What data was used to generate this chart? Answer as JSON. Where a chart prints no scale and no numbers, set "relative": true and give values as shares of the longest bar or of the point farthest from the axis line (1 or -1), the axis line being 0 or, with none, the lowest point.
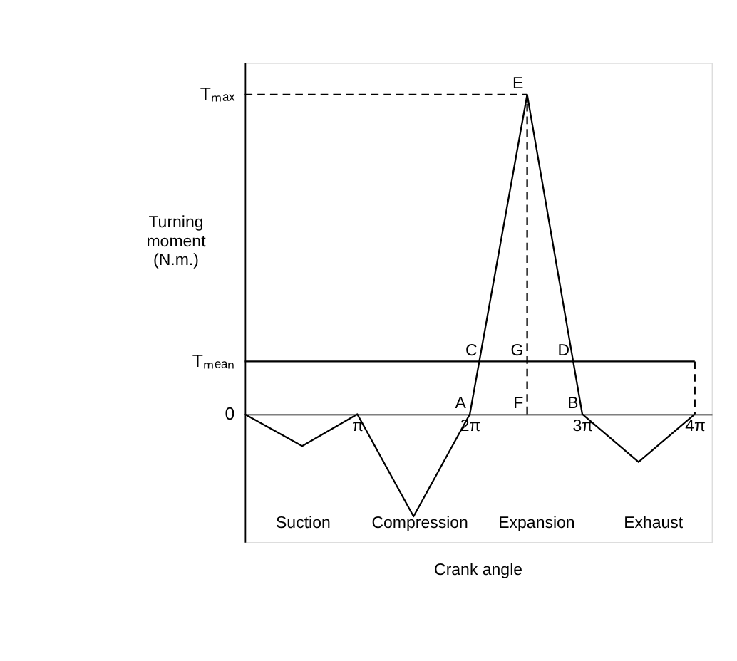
{
  "chart_data": {
    "type": "line",
    "relative": true,
    "ylabel": "Turning moment (N.m.)",
    "xlim": [
      0,
      13.04
    ],
    "xticks": [
      {
        "value": 3.1416,
        "label": "π"
      },
      {
        "value": 6.2832,
        "label": "2π"
      },
      {
        "value": 9.4248,
        "label": "3π"
      },
      {
        "value": 12.566,
        "label": "4π"
      }
    ],
    "grid": false,
    "marker": "none",
    "series": [
      {
        "color": "#000000",
        "line_style": "solid",
        "x": [
          0,
          1.602,
          3.1416,
          4.712,
          6.2832,
          7.885,
          9.4248,
          10.996,
          12.566
        ],
        "values": [
          0,
          -0.1,
          0,
          -0.32,
          0,
          1,
          0,
          -0.15,
          0
        ]
      },
      {
        "color": "#000000",
        "line_style": "solid",
        "x": [
          0,
          12.566
        ],
        "values": [
          0.165,
          0.165
        ]
      },
      {
        "color": "#000000",
        "line_style": "dashed",
        "x": [
          12.566,
          12.566
        ],
        "values": [
          0.165,
          0
        ]
      },
      {
        "color": "#000000",
        "line_style": "dashed",
        "x": [
          0,
          7.885
        ],
        "values": [
          1,
          1
        ]
      },
      {
        "color": "#000000",
        "line_style": "dashed",
        "x": [
          7.885,
          7.885
        ],
        "values": [
          0,
          1
        ]
      }
    ],
    "annotations": [
      {
        "text": "Tₘₐₓ",
        "x": 0,
        "y": 1
      },
      {
        "text": "Tₘₑₐₙ",
        "x": 0,
        "y": 0.165
      },
      {
        "text": "0",
        "x": 0,
        "y": 0
      },
      {
        "text": "E",
        "x": 7.885,
        "y": 1
      },
      {
        "text": "C",
        "x": 6.597,
        "y": 0.165
      },
      {
        "text": "D",
        "x": 9.173,
        "y": 0.165
      },
      {
        "text": "G",
        "x": 7.885,
        "y": 0.165
      },
      {
        "text": "A",
        "x": 6.2832,
        "y": 0
      },
      {
        "text": "B",
        "x": 9.4248,
        "y": 0
      },
      {
        "text": "F",
        "x": 7.885,
        "y": 0
      },
      "Suction",
      "Compression",
      "Expansion",
      "Exhaust",
      "Crank angle"
    ]
  }
}
